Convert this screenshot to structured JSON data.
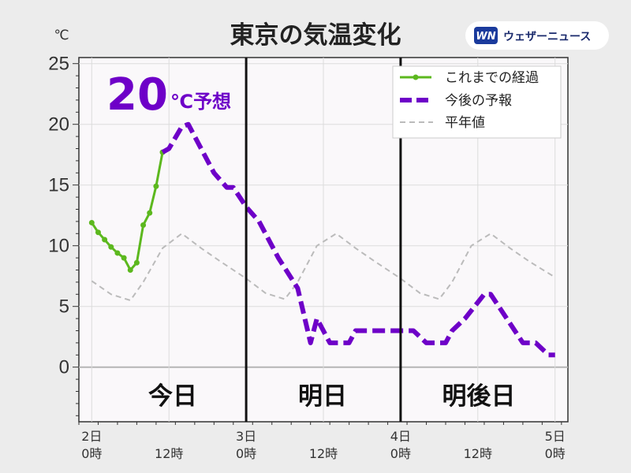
{
  "header": {
    "title": "東京の気温変化",
    "unit": "℃",
    "logo_text": "ウェザーニュース",
    "logo_mark": "WN"
  },
  "annotation": {
    "value": "20",
    "unit_label": "℃予想"
  },
  "day_labels": [
    "今日",
    "明日",
    "明後日"
  ],
  "colors": {
    "observed": "#5cb81e",
    "forecast": "#6e00c8",
    "normal": "#bbbbbb",
    "background": "#ececec",
    "plot_background": "#faf8fa",
    "grid": "#d8d8d8"
  },
  "chart_data": {
    "type": "line",
    "title": "東京の気温変化",
    "ylabel": "℃",
    "xlabel": "",
    "ylim": [
      -4.5,
      25.5
    ],
    "yticks": [
      0,
      5,
      10,
      15,
      20,
      25
    ],
    "ytick_labels": [
      "0",
      "5",
      "10",
      "15",
      "20",
      "25"
    ],
    "xlim": [
      "2日 -2時",
      "5日 2時"
    ],
    "xticks": [
      {
        "date": "2日",
        "time": "0時"
      },
      {
        "date": "",
        "time": "12時"
      },
      {
        "date": "3日",
        "time": "0時"
      },
      {
        "date": "",
        "time": "12時"
      },
      {
        "date": "4日",
        "time": "0時"
      },
      {
        "date": "",
        "time": "12時"
      },
      {
        "date": "5日",
        "time": "0時"
      }
    ],
    "day_dividers": [
      "3日 0時",
      "4日 0時"
    ],
    "grid": true,
    "legend_position": "top-right",
    "series": [
      {
        "name": "これまでの経過",
        "style": "solid-markers",
        "color": "#5cb81e",
        "points": [
          {
            "day": 2,
            "hour": 0,
            "y": 11.9
          },
          {
            "day": 2,
            "hour": 1,
            "y": 11.1
          },
          {
            "day": 2,
            "hour": 2,
            "y": 10.5
          },
          {
            "day": 2,
            "hour": 3,
            "y": 9.9
          },
          {
            "day": 2,
            "hour": 4,
            "y": 9.4
          },
          {
            "day": 2,
            "hour": 5,
            "y": 9.0
          },
          {
            "day": 2,
            "hour": 6,
            "y": 8.0
          },
          {
            "day": 2,
            "hour": 7,
            "y": 8.6
          },
          {
            "day": 2,
            "hour": 8,
            "y": 11.7
          },
          {
            "day": 2,
            "hour": 9,
            "y": 12.7
          },
          {
            "day": 2,
            "hour": 10,
            "y": 14.9
          },
          {
            "day": 2,
            "hour": 11,
            "y": 17.7
          }
        ]
      },
      {
        "name": "今後の予報",
        "style": "dashed-thick",
        "color": "#6e00c8",
        "points": [
          {
            "day": 2,
            "hour": 11,
            "y": 17.7
          },
          {
            "day": 2,
            "hour": 12,
            "y": 18.0
          },
          {
            "day": 2,
            "hour": 14,
            "y": 19.8
          },
          {
            "day": 2,
            "hour": 15,
            "y": 20.0
          },
          {
            "day": 2,
            "hour": 17,
            "y": 18.0
          },
          {
            "day": 2,
            "hour": 19,
            "y": 16.0
          },
          {
            "day": 2,
            "hour": 21,
            "y": 14.8
          },
          {
            "day": 2,
            "hour": 22,
            "y": 14.8
          },
          {
            "day": 3,
            "hour": 0,
            "y": 13.2
          },
          {
            "day": 3,
            "hour": 2,
            "y": 12.0
          },
          {
            "day": 3,
            "hour": 5,
            "y": 9.0
          },
          {
            "day": 3,
            "hour": 8,
            "y": 6.5
          },
          {
            "day": 3,
            "hour": 10,
            "y": 2.0
          },
          {
            "day": 3,
            "hour": 11,
            "y": 4.0
          },
          {
            "day": 3,
            "hour": 13,
            "y": 2.0
          },
          {
            "day": 3,
            "hour": 16,
            "y": 2.0
          },
          {
            "day": 3,
            "hour": 17,
            "y": 3.0
          },
          {
            "day": 3,
            "hour": 20,
            "y": 3.0
          },
          {
            "day": 4,
            "hour": 1,
            "y": 3.0
          },
          {
            "day": 4,
            "hour": 2,
            "y": 3.0
          },
          {
            "day": 4,
            "hour": 4,
            "y": 2.0
          },
          {
            "day": 4,
            "hour": 7,
            "y": 2.0
          },
          {
            "day": 4,
            "hour": 8,
            "y": 3.0
          },
          {
            "day": 4,
            "hour": 10,
            "y": 4.0
          },
          {
            "day": 4,
            "hour": 13,
            "y": 6.0
          },
          {
            "day": 4,
            "hour": 14,
            "y": 6.0
          },
          {
            "day": 4,
            "hour": 19,
            "y": 2.0
          },
          {
            "day": 4,
            "hour": 21,
            "y": 2.0
          },
          {
            "day": 4,
            "hour": 23,
            "y": 1.0
          },
          {
            "day": 5,
            "hour": 0,
            "y": 1.0
          }
        ]
      },
      {
        "name": "平年値",
        "style": "dashed-thin",
        "color": "#bbbbbb",
        "points": [
          {
            "day": 2,
            "hour": 0,
            "y": 7.1
          },
          {
            "day": 2,
            "hour": 3,
            "y": 6.0
          },
          {
            "day": 2,
            "hour": 6,
            "y": 5.5
          },
          {
            "day": 2,
            "hour": 8,
            "y": 7.0
          },
          {
            "day": 2,
            "hour": 11,
            "y": 9.8
          },
          {
            "day": 2,
            "hour": 14,
            "y": 11.0
          },
          {
            "day": 2,
            "hour": 17,
            "y": 9.8
          },
          {
            "day": 2,
            "hour": 20,
            "y": 8.7
          },
          {
            "day": 3,
            "hour": 0,
            "y": 7.3
          },
          {
            "day": 3,
            "hour": 3,
            "y": 6.1
          },
          {
            "day": 3,
            "hour": 6,
            "y": 5.6
          },
          {
            "day": 3,
            "hour": 8,
            "y": 7.0
          },
          {
            "day": 3,
            "hour": 11,
            "y": 10.0
          },
          {
            "day": 3,
            "hour": 14,
            "y": 11.0
          },
          {
            "day": 3,
            "hour": 17,
            "y": 9.8
          },
          {
            "day": 3,
            "hour": 20,
            "y": 8.7
          },
          {
            "day": 4,
            "hour": 0,
            "y": 7.3
          },
          {
            "day": 4,
            "hour": 3,
            "y": 6.1
          },
          {
            "day": 4,
            "hour": 6,
            "y": 5.6
          },
          {
            "day": 4,
            "hour": 8,
            "y": 7.0
          },
          {
            "day": 4,
            "hour": 11,
            "y": 10.0
          },
          {
            "day": 4,
            "hour": 14,
            "y": 11.0
          },
          {
            "day": 4,
            "hour": 17,
            "y": 9.8
          },
          {
            "day": 4,
            "hour": 20,
            "y": 8.7
          },
          {
            "day": 5,
            "hour": 0,
            "y": 7.4
          }
        ]
      }
    ]
  }
}
